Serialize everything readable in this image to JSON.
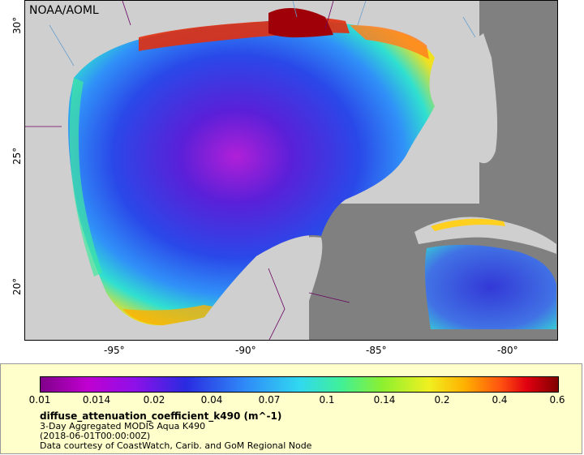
{
  "map": {
    "title": "NOAA/AOML",
    "lat_ticks": [
      "30°",
      "25°",
      "20°"
    ],
    "lon_ticks": [
      "-95°",
      "-90°",
      "-85°",
      "-80°"
    ],
    "colors": {
      "land": "#cfcfcf",
      "no_data": "#808080",
      "borders": "#6a0060",
      "rivers": "#6aa0d0"
    }
  },
  "legend": {
    "tick_labels": [
      "0.01",
      "0.014",
      "0.02",
      "0.04",
      "0.07",
      "0.1",
      "0.14",
      "0.2",
      "0.4",
      "0.6"
    ],
    "variable": "diffuse_attenuation_coefficient_k490 (m^-1)",
    "product": "3-Day Aggregated MODIS Aqua K490",
    "date": "(2018-06-01T00:00:00Z)",
    "credit": "Data courtesy of CoastWatch, Carib. and GoM Regional Node"
  }
}
